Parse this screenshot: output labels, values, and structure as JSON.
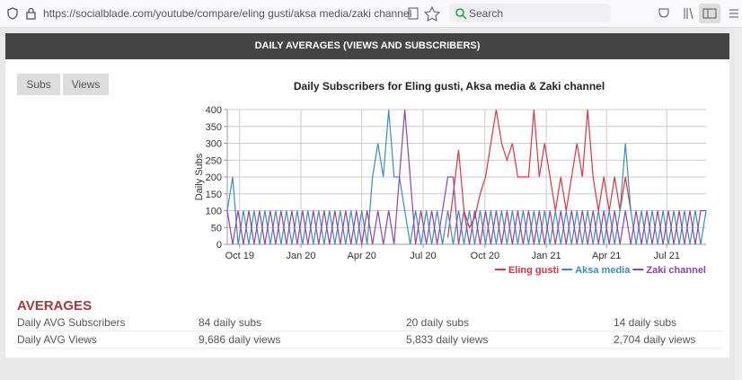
{
  "browser": {
    "url": "https://socialblade.com/youtube/compare/eling gusti/aksa media/zaki channel",
    "search_placeholder": "Search"
  },
  "section_title": "DAILY AVERAGES (VIEWS AND SUBSCRIBERS)",
  "tabs": [
    "Subs",
    "Views"
  ],
  "chart_data": {
    "type": "line",
    "title": "Daily Subscribers for Eling gusti, Aksa media & Zaki channel",
    "y_label": "Daily Subs",
    "grid": true,
    "legend": "bottom-right",
    "xlim": [
      0,
      89
    ],
    "ylim": [
      0,
      400
    ],
    "yticks": [
      0,
      50,
      100,
      150,
      200,
      250,
      300,
      350,
      400
    ],
    "xticks": [
      {
        "value": 2.3,
        "label": "Oct 19"
      },
      {
        "value": 13.7,
        "label": "Jan 20"
      },
      {
        "value": 25.0,
        "label": "Apr 20"
      },
      {
        "value": 36.4,
        "label": "Jul 20"
      },
      {
        "value": 47.9,
        "label": "Oct 20"
      },
      {
        "value": 59.3,
        "label": "Jan 21"
      },
      {
        "value": 70.5,
        "label": "Apr 21"
      },
      {
        "value": 81.7,
        "label": "Jul 21"
      }
    ],
    "series": [
      {
        "name": "Eling gusti",
        "color": "#dc3545",
        "values": [
          null,
          null,
          null,
          null,
          null,
          null,
          null,
          null,
          null,
          null,
          null,
          null,
          null,
          null,
          null,
          null,
          null,
          null,
          null,
          null,
          null,
          null,
          null,
          null,
          null,
          null,
          null,
          null,
          null,
          null,
          null,
          null,
          null,
          null,
          null,
          null,
          null,
          null,
          null,
          null,
          null,
          20,
          150,
          280,
          100,
          50,
          80,
          150,
          200,
          300,
          400,
          300,
          250,
          300,
          200,
          200,
          200,
          400,
          200,
          300,
          200,
          100,
          200,
          100,
          200,
          300,
          200,
          400,
          200,
          100,
          200,
          100,
          200,
          100,
          200,
          100,
          null,
          null,
          null,
          null,
          null,
          null,
          null,
          null,
          null,
          null,
          null,
          null,
          null,
          null
        ]
      },
      {
        "name": "Aksa media",
        "color": "#3c8dbc",
        "values": [
          100,
          200,
          0,
          100,
          0,
          100,
          0,
          100,
          0,
          100,
          0,
          100,
          0,
          100,
          0,
          100,
          0,
          100,
          0,
          100,
          0,
          100,
          0,
          100,
          0,
          100,
          0,
          200,
          300,
          200,
          400,
          200,
          200,
          100,
          0,
          100,
          0,
          100,
          0,
          100,
          0,
          100,
          0,
          100,
          0,
          100,
          0,
          100,
          0,
          100,
          0,
          100,
          0,
          100,
          0,
          100,
          0,
          100,
          0,
          100,
          0,
          100,
          0,
          100,
          0,
          100,
          0,
          100,
          0,
          100,
          0,
          100,
          0,
          100,
          300,
          100,
          0,
          100,
          0,
          100,
          0,
          100,
          0,
          100,
          0,
          100,
          0,
          100,
          0,
          100
        ]
      },
      {
        "name": "Zaki channel",
        "color": "#8e44ad",
        "values": [
          100,
          0,
          100,
          0,
          100,
          0,
          100,
          0,
          100,
          0,
          100,
          0,
          100,
          0,
          100,
          0,
          100,
          0,
          100,
          0,
          100,
          0,
          100,
          0,
          100,
          0,
          100,
          0,
          100,
          0,
          100,
          0,
          200,
          400,
          200,
          0,
          100,
          0,
          100,
          0,
          100,
          200,
          200,
          0,
          100,
          0,
          100,
          0,
          100,
          0,
          100,
          0,
          100,
          0,
          100,
          0,
          100,
          0,
          100,
          0,
          100,
          0,
          100,
          0,
          100,
          0,
          100,
          0,
          100,
          0,
          100,
          0,
          100,
          0,
          100,
          0,
          100,
          0,
          100,
          0,
          100,
          0,
          100,
          0,
          100,
          0,
          100,
          0,
          100,
          100
        ]
      }
    ]
  },
  "averages": {
    "title": "AVERAGES",
    "rows": [
      {
        "label": "Daily AVG Subscribers",
        "values": [
          "84 daily subs",
          "20 daily subs",
          "14 daily subs"
        ]
      },
      {
        "label": "Daily AVG Views",
        "values": [
          "9,686 daily views",
          "5,833 daily views",
          "2,704 daily views"
        ]
      }
    ]
  }
}
